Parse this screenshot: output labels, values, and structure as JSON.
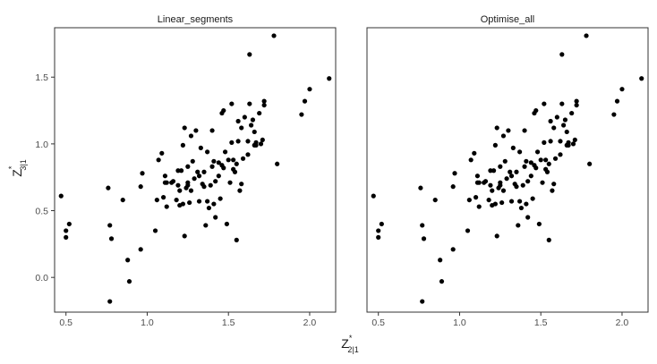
{
  "chart_data": {
    "type": "scatter",
    "x_axis": {
      "label_base": "Z",
      "label_superscript": "*",
      "label_subscript": "2|1",
      "lim": [
        0.43,
        2.16
      ],
      "ticks": [
        0.5,
        1.0,
        1.5,
        2.0
      ],
      "tick_labels": [
        "0.5",
        "1.0",
        "1.5",
        "2.0"
      ]
    },
    "y_axis": {
      "label_base": "Z",
      "label_superscript": "*",
      "label_subscript": "3|1",
      "lim": [
        -0.26,
        1.87
      ],
      "ticks": [
        0.0,
        0.5,
        1.0,
        1.5
      ],
      "tick_labels": [
        "0.0",
        "0.5",
        "1.0",
        "1.5"
      ]
    },
    "grid": false,
    "point_color": "#000000",
    "panels": [
      {
        "title": "Linear_segments",
        "x": [
          0.47,
          0.5,
          0.5,
          0.52,
          0.76,
          0.77,
          0.78,
          0.77,
          0.85,
          0.88,
          0.89,
          0.96,
          0.96,
          0.97,
          1.05,
          1.06,
          1.07,
          1.09,
          1.1,
          1.11,
          1.11,
          1.12,
          1.12,
          1.15,
          1.16,
          1.18,
          1.19,
          1.19,
          1.2,
          1.2,
          1.21,
          1.22,
          1.22,
          1.23,
          1.23,
          1.24,
          1.25,
          1.25,
          1.25,
          1.26,
          1.27,
          1.27,
          1.28,
          1.29,
          1.3,
          1.31,
          1.32,
          1.32,
          1.33,
          1.34,
          1.35,
          1.35,
          1.36,
          1.37,
          1.37,
          1.38,
          1.39,
          1.4,
          1.4,
          1.41,
          1.41,
          1.42,
          1.42,
          1.44,
          1.44,
          1.45,
          1.46,
          1.46,
          1.47,
          1.47,
          1.48,
          1.49,
          1.5,
          1.51,
          1.52,
          1.52,
          1.53,
          1.53,
          1.54,
          1.55,
          1.55,
          1.56,
          1.56,
          1.57,
          1.58,
          1.58,
          1.59,
          1.6,
          1.62,
          1.62,
          1.63,
          1.63,
          1.64,
          1.65,
          1.66,
          1.66,
          1.67,
          1.67,
          1.69,
          1.7,
          1.71,
          1.72,
          1.72,
          1.78,
          1.8,
          1.95,
          1.97,
          2.0,
          2.12
        ],
        "y": [
          0.61,
          0.35,
          0.3,
          0.4,
          0.67,
          0.39,
          0.29,
          -0.18,
          0.58,
          0.13,
          -0.03,
          0.21,
          0.68,
          0.78,
          0.35,
          0.58,
          0.88,
          0.93,
          0.6,
          0.76,
          0.71,
          0.53,
          0.71,
          0.71,
          0.72,
          0.58,
          0.8,
          0.69,
          0.54,
          0.65,
          0.8,
          0.55,
          0.99,
          0.31,
          1.12,
          0.67,
          0.83,
          0.69,
          0.71,
          0.56,
          0.65,
          1.06,
          0.87,
          0.74,
          1.1,
          0.79,
          0.57,
          0.76,
          0.97,
          0.7,
          0.79,
          0.68,
          0.39,
          0.94,
          0.57,
          0.52,
          0.69,
          1.1,
          0.83,
          0.55,
          0.87,
          0.72,
          0.45,
          0.76,
          0.86,
          0.59,
          1.23,
          0.84,
          0.82,
          1.25,
          0.94,
          0.4,
          0.88,
          0.71,
          1.01,
          1.3,
          0.81,
          0.88,
          0.79,
          0.28,
          0.85,
          1.02,
          1.17,
          0.65,
          1.12,
          0.7,
          0.89,
          1.2,
          0.92,
          1.02,
          1.3,
          1.67,
          1.14,
          1.18,
          0.99,
          1.09,
          1.01,
          0.99,
          1.23,
          1.0,
          1.03,
          1.32,
          1.29,
          1.81,
          0.85,
          1.22,
          1.32,
          1.41,
          1.49
        ]
      },
      {
        "title": "Optimise_all",
        "x": [
          0.47,
          0.5,
          0.5,
          0.52,
          0.76,
          0.77,
          0.78,
          0.77,
          0.85,
          0.88,
          0.89,
          0.96,
          0.96,
          0.97,
          1.05,
          1.06,
          1.07,
          1.09,
          1.1,
          1.11,
          1.11,
          1.12,
          1.12,
          1.15,
          1.16,
          1.18,
          1.19,
          1.19,
          1.2,
          1.2,
          1.21,
          1.22,
          1.22,
          1.23,
          1.23,
          1.24,
          1.25,
          1.25,
          1.25,
          1.26,
          1.27,
          1.27,
          1.28,
          1.29,
          1.3,
          1.31,
          1.32,
          1.32,
          1.33,
          1.34,
          1.35,
          1.35,
          1.36,
          1.37,
          1.37,
          1.38,
          1.39,
          1.4,
          1.4,
          1.41,
          1.41,
          1.42,
          1.42,
          1.44,
          1.44,
          1.45,
          1.46,
          1.46,
          1.47,
          1.47,
          1.48,
          1.49,
          1.5,
          1.51,
          1.52,
          1.52,
          1.53,
          1.53,
          1.54,
          1.55,
          1.55,
          1.56,
          1.56,
          1.57,
          1.58,
          1.58,
          1.59,
          1.6,
          1.62,
          1.62,
          1.63,
          1.63,
          1.64,
          1.65,
          1.66,
          1.66,
          1.67,
          1.67,
          1.69,
          1.7,
          1.71,
          1.72,
          1.72,
          1.78,
          1.8,
          1.95,
          1.97,
          2.0,
          2.12
        ],
        "y": [
          0.61,
          0.35,
          0.3,
          0.4,
          0.67,
          0.39,
          0.29,
          -0.18,
          0.58,
          0.13,
          -0.03,
          0.21,
          0.68,
          0.78,
          0.35,
          0.58,
          0.88,
          0.93,
          0.6,
          0.76,
          0.71,
          0.53,
          0.71,
          0.71,
          0.72,
          0.58,
          0.8,
          0.69,
          0.54,
          0.65,
          0.8,
          0.55,
          0.99,
          0.31,
          1.12,
          0.67,
          0.83,
          0.69,
          0.71,
          0.56,
          0.65,
          1.06,
          0.87,
          0.74,
          1.1,
          0.79,
          0.57,
          0.76,
          0.97,
          0.7,
          0.79,
          0.68,
          0.39,
          0.94,
          0.57,
          0.52,
          0.69,
          1.1,
          0.83,
          0.55,
          0.87,
          0.72,
          0.45,
          0.76,
          0.86,
          0.59,
          1.23,
          0.84,
          0.82,
          1.25,
          0.94,
          0.4,
          0.88,
          0.71,
          1.01,
          1.3,
          0.81,
          0.88,
          0.79,
          0.28,
          0.85,
          1.02,
          1.17,
          0.65,
          1.12,
          0.7,
          0.89,
          1.2,
          0.92,
          1.02,
          1.3,
          1.67,
          1.14,
          1.18,
          0.99,
          1.09,
          1.01,
          0.99,
          1.23,
          1.0,
          1.03,
          1.32,
          1.29,
          1.81,
          0.85,
          1.22,
          1.32,
          1.41,
          1.49
        ]
      }
    ]
  }
}
